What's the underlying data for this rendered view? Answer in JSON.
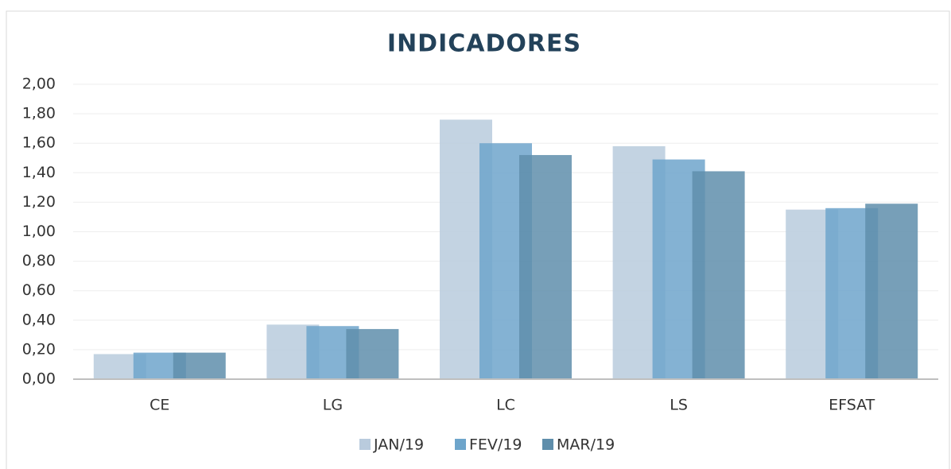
{
  "chart_data": {
    "type": "bar",
    "title": "INDICADORES",
    "categories": [
      "CE",
      "LG",
      "LC",
      "LS",
      "EFSAT"
    ],
    "series": [
      {
        "name": "JAN/19",
        "color": "#b9cbdd",
        "values": [
          0.17,
          0.37,
          1.76,
          1.58,
          1.15
        ]
      },
      {
        "name": "FEV/19",
        "color": "#6ea5cb",
        "values": [
          0.18,
          0.36,
          1.6,
          1.49,
          1.16
        ]
      },
      {
        "name": "MAR/19",
        "color": "#5f8eab",
        "values": [
          0.18,
          0.34,
          1.52,
          1.41,
          1.19
        ]
      }
    ],
    "ylim": [
      0,
      2
    ],
    "yticks": [
      {
        "value": 0,
        "label": "0,00"
      },
      {
        "value": 0.2,
        "label": "0,20"
      },
      {
        "value": 0.4,
        "label": "0,40"
      },
      {
        "value": 0.6,
        "label": "0,60"
      },
      {
        "value": 0.8,
        "label": "0,80"
      },
      {
        "value": 1,
        "label": "1,00"
      },
      {
        "value": 1.2,
        "label": "1,20"
      },
      {
        "value": 1.4,
        "label": "1,40"
      },
      {
        "value": 1.6,
        "label": "1,60"
      },
      {
        "value": 1.8,
        "label": "1,80"
      },
      {
        "value": 2,
        "label": "2,00"
      }
    ],
    "grid": true,
    "legend": "bottom"
  }
}
